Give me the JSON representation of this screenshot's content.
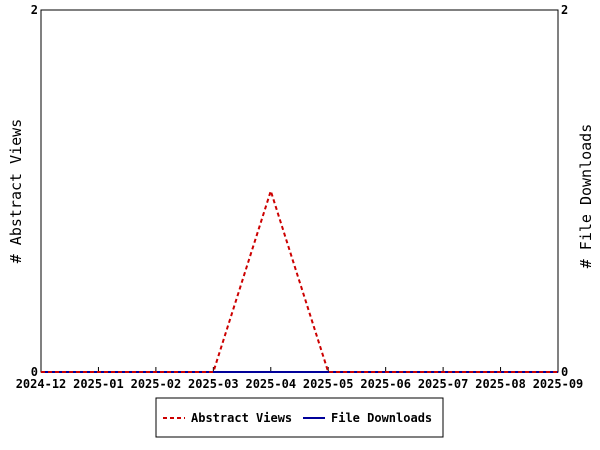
{
  "chart_data": {
    "type": "line",
    "x": [
      "2024-12",
      "2025-01",
      "2025-02",
      "2025-03",
      "2025-04",
      "2025-05",
      "2025-06",
      "2025-07",
      "2025-08",
      "2025-09"
    ],
    "x_tick_labels": [
      "2024-12",
      "2025-01",
      "2025-02",
      "2025-03",
      "2025-04",
      "2025-05",
      "2025-06",
      "2025-07",
      "2025-08",
      "2025-09"
    ],
    "series": [
      {
        "name": "Abstract Views",
        "axis": "left",
        "color": "#cc0000",
        "style": "dashed",
        "values": [
          0,
          0,
          0,
          0,
          1,
          0,
          0,
          0,
          0,
          0
        ]
      },
      {
        "name": "File Downloads",
        "axis": "right",
        "color": "#000099",
        "style": "solid",
        "values": [
          0,
          0,
          0,
          0,
          0,
          0,
          0,
          0,
          0,
          0
        ]
      }
    ],
    "ylabel": "# Abstract Views",
    "y2label": "# File Downloads",
    "ylim": [
      0,
      2
    ],
    "y2lim": [
      0,
      2
    ],
    "y_tick_labels": [
      "0",
      "2"
    ],
    "y2_tick_labels": [
      "0",
      "2"
    ],
    "grid": false,
    "legend_position": "bottom-center"
  }
}
